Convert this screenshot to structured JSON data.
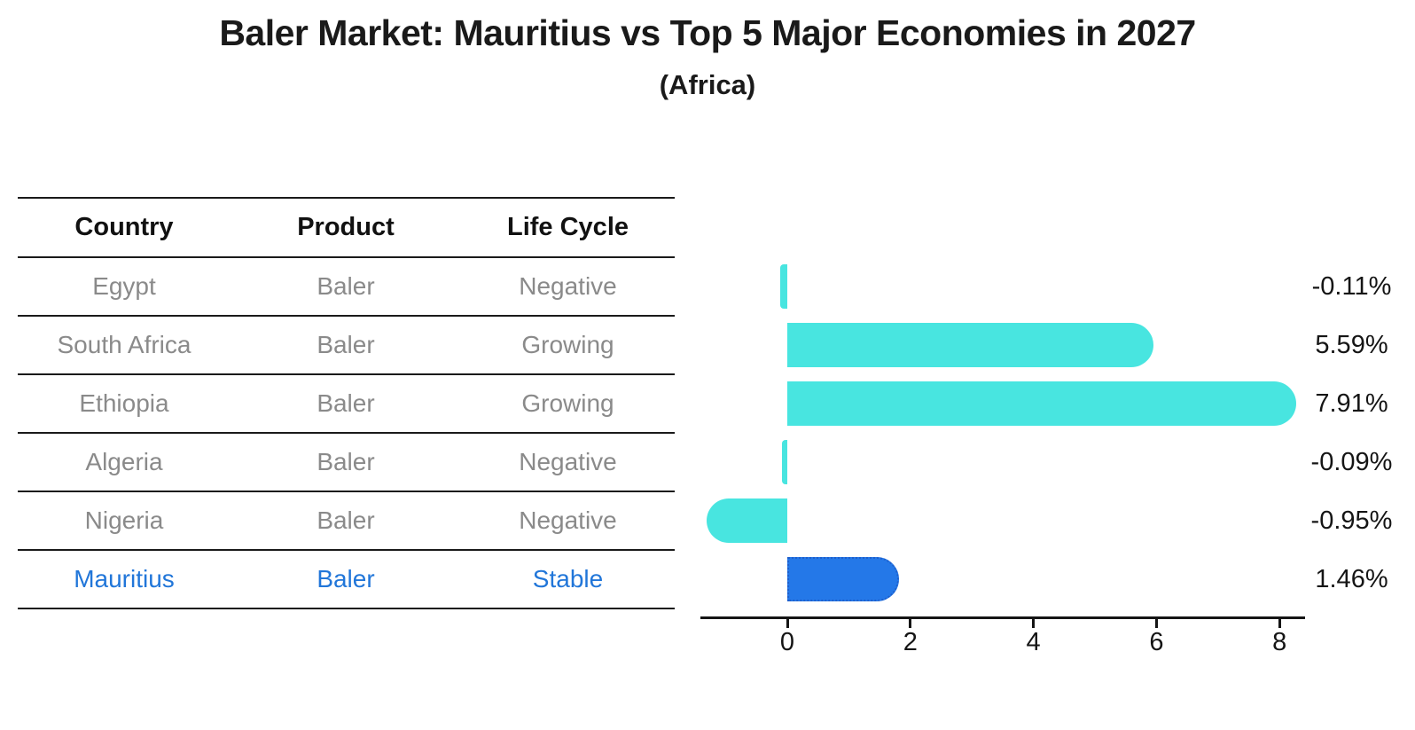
{
  "title": "Baler Market: Mauritius vs Top 5 Major Economies in 2027",
  "subtitle": "(Africa)",
  "table": {
    "headers": [
      "Country",
      "Product",
      "Life Cycle"
    ],
    "rows": [
      {
        "country": "Egypt",
        "product": "Baler",
        "life_cycle": "Negative",
        "highlight": false
      },
      {
        "country": "South Africa",
        "product": "Baler",
        "life_cycle": "Growing",
        "highlight": false
      },
      {
        "country": "Ethiopia",
        "product": "Baler",
        "life_cycle": "Growing",
        "highlight": false
      },
      {
        "country": "Algeria",
        "product": "Baler",
        "life_cycle": "Negative",
        "highlight": false
      },
      {
        "country": "Nigeria",
        "product": "Baler",
        "life_cycle": "Negative",
        "highlight": false
      },
      {
        "country": "Mauritius",
        "product": "Baler",
        "life_cycle": "Stable",
        "highlight": true
      }
    ]
  },
  "chart_data": {
    "type": "bar",
    "orientation": "horizontal",
    "title": "Baler Market: Mauritius vs Top 5 Major Economies in 2027",
    "subtitle": "(Africa)",
    "categories": [
      "Egypt",
      "South Africa",
      "Ethiopia",
      "Algeria",
      "Nigeria",
      "Mauritius"
    ],
    "values": [
      -0.11,
      5.59,
      7.91,
      -0.09,
      -0.95,
      1.46
    ],
    "value_labels": [
      "-0.11%",
      "5.59%",
      "7.91%",
      "-0.09%",
      "-0.95%",
      "1.46%"
    ],
    "x_ticks": [
      0,
      2,
      4,
      6,
      8
    ],
    "xlim": [
      -1.45,
      8.45
    ],
    "grid": false,
    "legend": false,
    "highlight_index": 5
  },
  "colors": {
    "bar_default": "#48e5e0",
    "bar_highlight": "#2478e8",
    "bar_highlight_border": "#1e5fcc",
    "highlight_text": "#2176d9",
    "table_text": "#8a8a8a",
    "axis": "#151515"
  }
}
